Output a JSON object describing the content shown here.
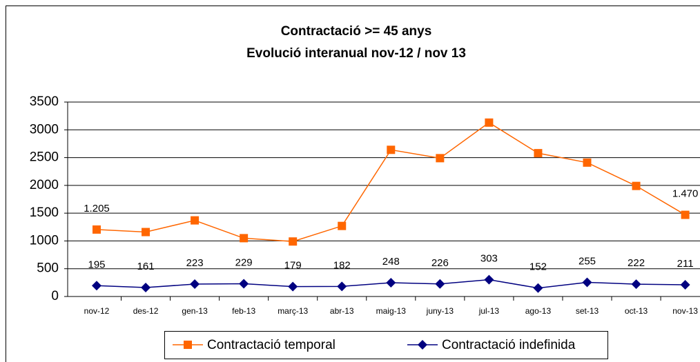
{
  "chart_data": {
    "type": "line",
    "title": "Contractació >= 45 anys",
    "subtitle": "Evolució interanual nov-12 / nov 13",
    "categories": [
      "nov-12",
      "des-12",
      "gen-13",
      "feb-13",
      "març-13",
      "abr-13",
      "maig-13",
      "juny-13",
      "jul-13",
      "ago-13",
      "set-13",
      "oct-13",
      "nov-13"
    ],
    "series": [
      {
        "name": "Contractació temporal",
        "color": "#ff6600",
        "marker": "square",
        "values": [
          1205,
          1160,
          1370,
          1050,
          990,
          1270,
          2640,
          2490,
          3130,
          2580,
          2410,
          1990,
          1470
        ],
        "value_labels": [
          "1.205",
          null,
          null,
          null,
          null,
          null,
          null,
          null,
          null,
          null,
          null,
          null,
          "1.470"
        ]
      },
      {
        "name": "Contractació indefinida",
        "color": "#000080",
        "marker": "diamond",
        "values": [
          195,
          161,
          223,
          229,
          179,
          182,
          248,
          226,
          303,
          152,
          255,
          222,
          211
        ]
      }
    ],
    "ylim": [
      0,
      3500
    ],
    "yticks": [
      0,
      500,
      1000,
      1500,
      2000,
      2500,
      3000,
      3500
    ],
    "grid": true,
    "legend": "bottom"
  }
}
